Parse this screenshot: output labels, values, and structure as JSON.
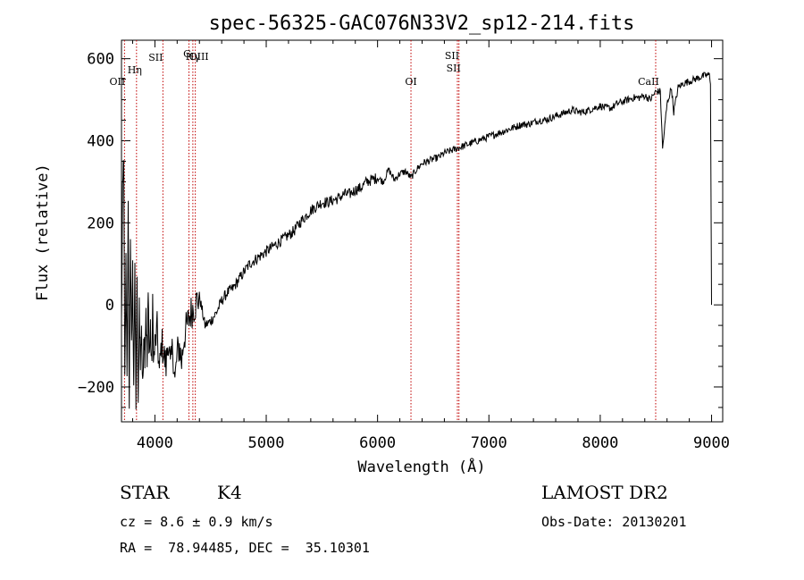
{
  "chart_data": {
    "type": "line",
    "title": "spec-56325-GAC076N33V2_sp12-214.fits",
    "xlabel": "Wavelength (Å)",
    "ylabel": "Flux (relative)",
    "xlim": [
      3700,
      9100
    ],
    "ylim": [
      -285,
      645
    ],
    "xticks": [
      4000,
      5000,
      6000,
      7000,
      8000,
      9000
    ],
    "yticks": [
      -200,
      0,
      200,
      400,
      600
    ],
    "grid": false,
    "series": [
      {
        "name": "flux",
        "x": [
          3700,
          3710,
          3720,
          3730,
          3740,
          3750,
          3760,
          3770,
          3780,
          3790,
          3800,
          3810,
          3820,
          3830,
          3840,
          3850,
          3860,
          3870,
          3880,
          3890,
          3900,
          3910,
          3920,
          3930,
          3940,
          3950,
          3960,
          3970,
          3980,
          3990,
          4000,
          4020,
          4040,
          4060,
          4080,
          4100,
          4120,
          4140,
          4160,
          4180,
          4200,
          4220,
          4240,
          4260,
          4280,
          4300,
          4320,
          4340,
          4360,
          4380,
          4400,
          4450,
          4500,
          4550,
          4600,
          4650,
          4700,
          4750,
          4800,
          4850,
          4900,
          4950,
          5000,
          5050,
          5100,
          5150,
          5200,
          5250,
          5300,
          5350,
          5400,
          5450,
          5500,
          5550,
          5600,
          5650,
          5700,
          5750,
          5800,
          5850,
          5900,
          5950,
          6000,
          6050,
          6100,
          6150,
          6200,
          6250,
          6300,
          6350,
          6400,
          6450,
          6500,
          6550,
          6600,
          6650,
          6700,
          6750,
          6800,
          6850,
          6900,
          6950,
          7000,
          7050,
          7100,
          7150,
          7200,
          7250,
          7300,
          7350,
          7400,
          7450,
          7500,
          7550,
          7600,
          7650,
          7700,
          7750,
          7800,
          7850,
          7900,
          7950,
          8000,
          8050,
          8100,
          8150,
          8200,
          8250,
          8300,
          8350,
          8400,
          8450,
          8500,
          8520,
          8540,
          8560,
          8600,
          8620,
          8640,
          8660,
          8700,
          8750,
          8800,
          8850,
          8900,
          8950,
          8980,
          8990,
          9000
        ],
        "values": [
          -50,
          250,
          380,
          -200,
          100,
          -150,
          220,
          -250,
          180,
          -120,
          80,
          -180,
          60,
          -230,
          40,
          -270,
          10,
          -150,
          -40,
          -220,
          -60,
          -110,
          0,
          -150,
          20,
          -120,
          -50,
          -160,
          -10,
          -140,
          -100,
          -60,
          -170,
          -90,
          -120,
          -150,
          -80,
          -160,
          -100,
          -190,
          -120,
          -100,
          -140,
          -80,
          -60,
          -40,
          -20,
          -10,
          0,
          10,
          20,
          -50,
          -40,
          -20,
          10,
          30,
          40,
          60,
          80,
          100,
          110,
          120,
          130,
          140,
          150,
          160,
          170,
          180,
          200,
          215,
          230,
          240,
          250,
          250,
          255,
          260,
          270,
          270,
          280,
          285,
          300,
          305,
          310,
          300,
          330,
          305,
          320,
          325,
          310,
          330,
          345,
          350,
          355,
          360,
          370,
          375,
          380,
          385,
          390,
          395,
          400,
          405,
          410,
          415,
          420,
          425,
          430,
          435,
          440,
          440,
          445,
          450,
          450,
          455,
          460,
          465,
          470,
          475,
          470,
          470,
          475,
          480,
          485,
          480,
          480,
          490,
          495,
          500,
          505,
          505,
          510,
          500,
          520,
          520,
          520,
          380,
          490,
          510,
          530,
          470,
          530,
          540,
          545,
          550,
          555,
          560,
          560,
          545,
          0
        ]
      }
    ],
    "lines": [
      {
        "label": "OII",
        "x": 3727
      },
      {
        "label": "Hη",
        "x": 3835
      },
      {
        "label": "SII",
        "x": 4072
      },
      {
        "label": "G",
        "x": 4306
      },
      {
        "label": "Hγ",
        "x": 4341
      },
      {
        "label": "OIII",
        "x": 4363
      },
      {
        "label": "OI",
        "x": 6300
      },
      {
        "label": "SII",
        "x": 6717
      },
      {
        "label": "SII",
        "x": 6731
      },
      {
        "label": "CaII",
        "x": 8498
      }
    ],
    "line_color": "#000000",
    "marker_color": "#c00000"
  },
  "info": {
    "object_class": "STAR",
    "subclass": "K4",
    "survey": "LAMOST DR2",
    "cz": "cz = 8.6 ± 0.9 km/s",
    "obs_date": "Obs-Date: 20130201",
    "radec": "RA =  78.94485, DEC =  35.10301"
  }
}
